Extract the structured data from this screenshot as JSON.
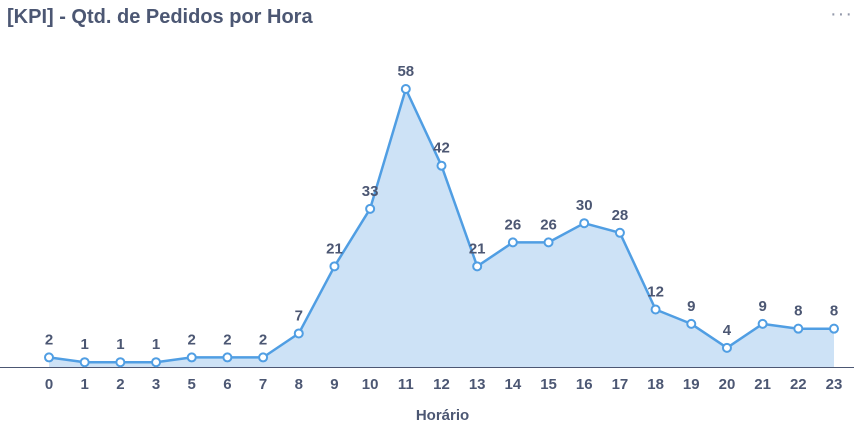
{
  "card": {
    "title": "[KPI] - Qtd. de Pedidos por Hora",
    "menu_icon": "ellipsis-icon",
    "menu_glyph": "···"
  },
  "chart_data": {
    "type": "area",
    "title": "[KPI] - Qtd. de Pedidos por Hora",
    "xlabel": "Horário",
    "ylabel": "",
    "categories": [
      "0",
      "1",
      "2",
      "3",
      "5",
      "6",
      "7",
      "8",
      "9",
      "10",
      "11",
      "12",
      "13",
      "14",
      "15",
      "16",
      "17",
      "18",
      "19",
      "20",
      "21",
      "22",
      "23"
    ],
    "series": [
      {
        "values": [
          2,
          1,
          1,
          1,
          2,
          2,
          2,
          7,
          21,
          33,
          58,
          42,
          21,
          26,
          26,
          30,
          28,
          12,
          9,
          4,
          9,
          8,
          8
        ]
      }
    ],
    "ylim": [
      0,
      58
    ],
    "grid": false,
    "legend": "none",
    "colors": {
      "line": "#509ee3",
      "fill": "#cde2f6",
      "marker_fill": "#ffffff",
      "axis": "#4c5773"
    }
  }
}
